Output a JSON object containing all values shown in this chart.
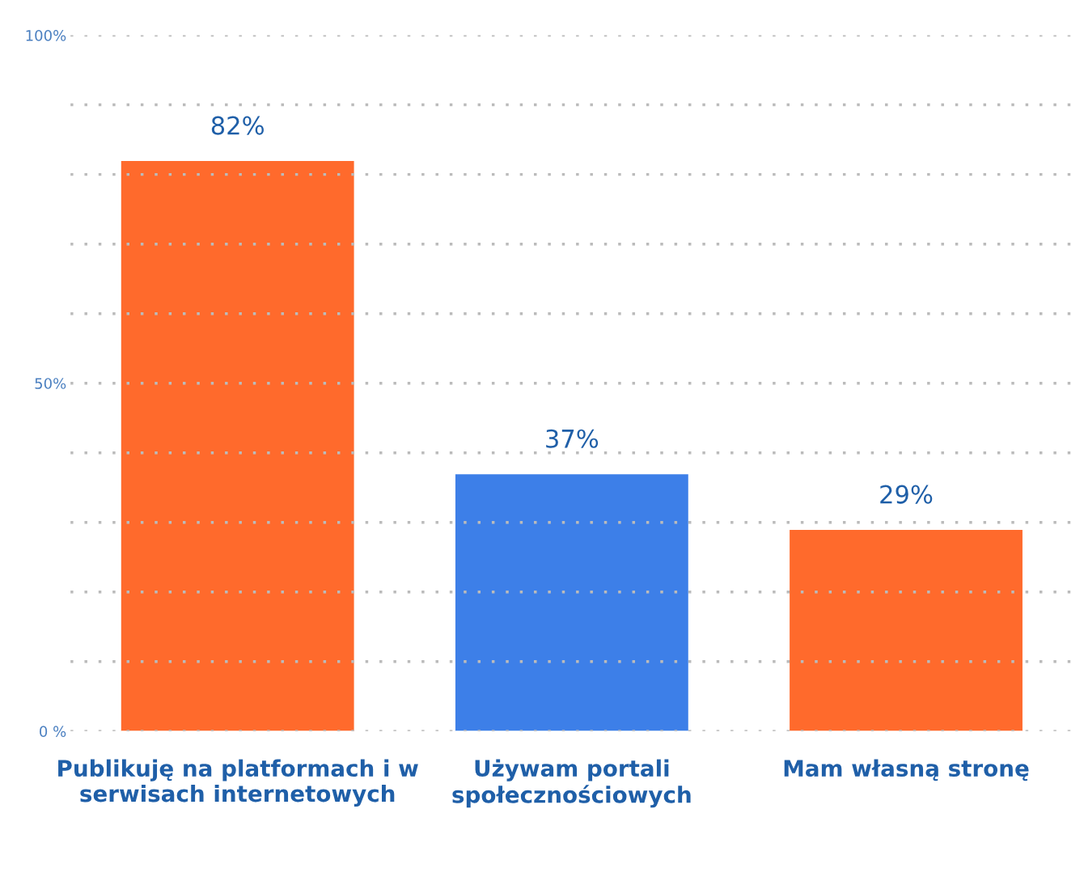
{
  "chart_data": {
    "type": "bar",
    "categories": [
      "Publikuję na platformach i w serwisach internetowych",
      "Używam portali społecznościowych",
      "Mam własną stronę"
    ],
    "values": [
      82,
      37,
      29
    ],
    "colors": [
      "#ff6a2c",
      "#3d7fe8",
      "#ff6a2c"
    ],
    "value_labels": [
      "82%",
      "37%",
      "29%"
    ],
    "ylim": [
      0,
      100
    ],
    "yticks": [
      {
        "value": 0,
        "label": "0 %"
      },
      {
        "value": 10,
        "label": null
      },
      {
        "value": 20,
        "label": null
      },
      {
        "value": 30,
        "label": null
      },
      {
        "value": 40,
        "label": null
      },
      {
        "value": 50,
        "label": "50%"
      },
      {
        "value": 60,
        "label": null
      },
      {
        "value": 70,
        "label": null
      },
      {
        "value": 80,
        "label": null
      },
      {
        "value": 90,
        "label": null
      },
      {
        "value": 100,
        "label": "100%"
      }
    ],
    "grid": "y",
    "legend": false
  }
}
